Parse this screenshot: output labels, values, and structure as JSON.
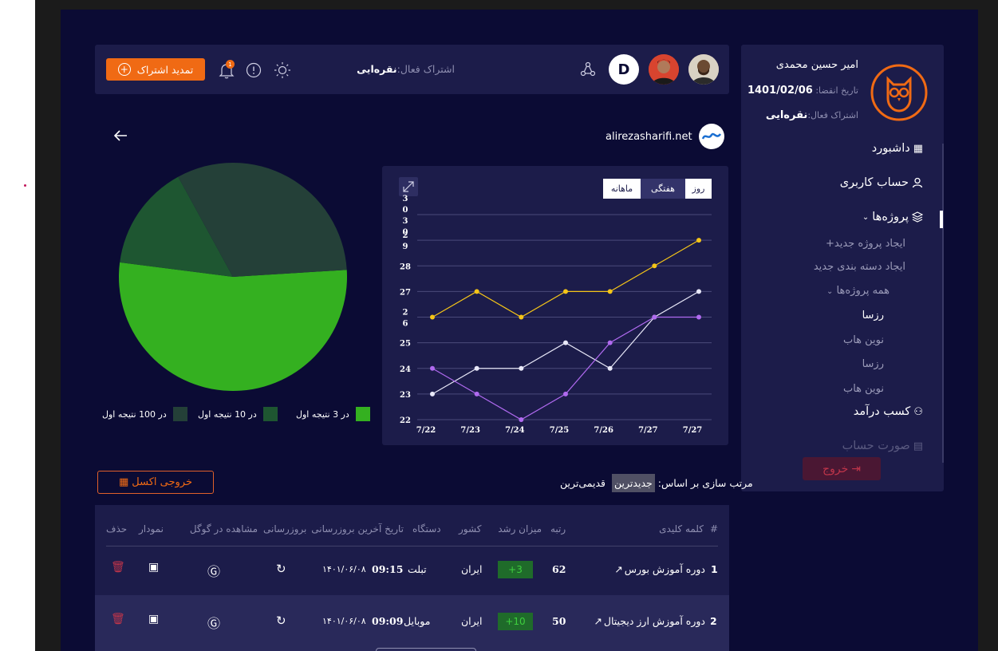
{
  "profile": {
    "name": "امیر حسین محمدی",
    "expiry_label": "تاریخ انقضا:",
    "expiry_value": "1401/02/06",
    "subscription_label": "اشتراک فعال:",
    "subscription_value": "نقره‌ایی"
  },
  "sidebar": {
    "items": [
      {
        "label": "داشبورد",
        "icon": "grid-icon"
      },
      {
        "label": "حساب کاربری",
        "icon": "user-icon"
      },
      {
        "label": "پروژه‌ها",
        "icon": "layers-icon"
      },
      {
        "label": "کسب درآمد",
        "icon": "money-bag-icon"
      },
      {
        "label": "صورت حساب",
        "icon": "invoice-icon"
      }
    ],
    "project_sub": [
      "ایجاد پروژه جدید+",
      "ایجاد دسته بندی جدید",
      "همه پروژه‌ها"
    ],
    "projects": [
      "رزسا",
      "نوین هاب",
      "رزسا",
      "نوین هاب"
    ],
    "logout_label": "خروج"
  },
  "header": {
    "subscription_label": "اشتراک فعال:",
    "subscription_value": "نقره‌ایی",
    "renew_label": "تمدید اشتراک",
    "avatar_letter": "D",
    "notification_badge": "1"
  },
  "site": {
    "domain": "alirezasharifi.net"
  },
  "chart_tabs": [
    "روز",
    "هفتگی",
    "ماهانه"
  ],
  "chart_data": [
    {
      "type": "line",
      "x": [
        "7/22",
        "7/23",
        "7/24",
        "7/25",
        "7/26",
        "7/27",
        "7/27"
      ],
      "y_ticks": [
        "22",
        "23",
        "24",
        "25",
        "2 6",
        "27",
        "28",
        "2 9",
        "3 0 3 0"
      ],
      "y_tick_values": [
        22,
        23,
        24,
        25,
        26,
        27,
        28,
        29,
        30
      ],
      "ylim": [
        22,
        30
      ],
      "series": [
        {
          "color": "#f5c518",
          "values": [
            26,
            27,
            26,
            27,
            27,
            28,
            29
          ]
        },
        {
          "color": "#e8e8f8",
          "values": [
            23,
            24,
            24,
            25,
            24,
            26,
            27
          ]
        },
        {
          "color": "#b06af0",
          "values": [
            24,
            23,
            22,
            23,
            25,
            26,
            26
          ]
        }
      ],
      "grid": true
    },
    {
      "type": "pie",
      "slices": [
        {
          "label": "در 3 نتیجه اول",
          "value": 53,
          "color": "#34b020"
        },
        {
          "label": "در 10 نتیجه اول",
          "value": 15,
          "color": "#1e5631"
        },
        {
          "label": "در 100 نتیجه اول",
          "value": 32,
          "color": "#244038"
        }
      ]
    }
  ],
  "sort": {
    "label": "مرتب سازی بر اساس:",
    "newest": "جدیدترین",
    "oldest": "قدیمی‌ترین"
  },
  "export_label": "خروجی اکسل",
  "table": {
    "headers": {
      "num": "#",
      "keyword": "کلمه کلیدی",
      "rank": "رتبه",
      "growth": "میزان رشد",
      "country": "کشور",
      "device": "دستگاه",
      "last_update": "تاریخ آخرین بروزرسانی",
      "refresh": "بروزرسانی",
      "google": "مشاهده در گوگل",
      "chart": "نمودار",
      "delete": "حذف"
    },
    "rows": [
      {
        "num": "1",
        "keyword": "دوره آموزش بورس",
        "rank": "62",
        "growth": "+3",
        "country": "ایران",
        "device": "تبلت",
        "time": "09:15",
        "date": "۱۴۰۱/۰۶/۰۸"
      },
      {
        "num": "2",
        "keyword": "دوره آموزش ارز دیجیتال",
        "rank": "50",
        "growth": "+10",
        "country": "ایران",
        "device": "موبایل",
        "time": "09:09",
        "date": "۱۴۰۱/۰۶/۰۸"
      }
    ]
  }
}
